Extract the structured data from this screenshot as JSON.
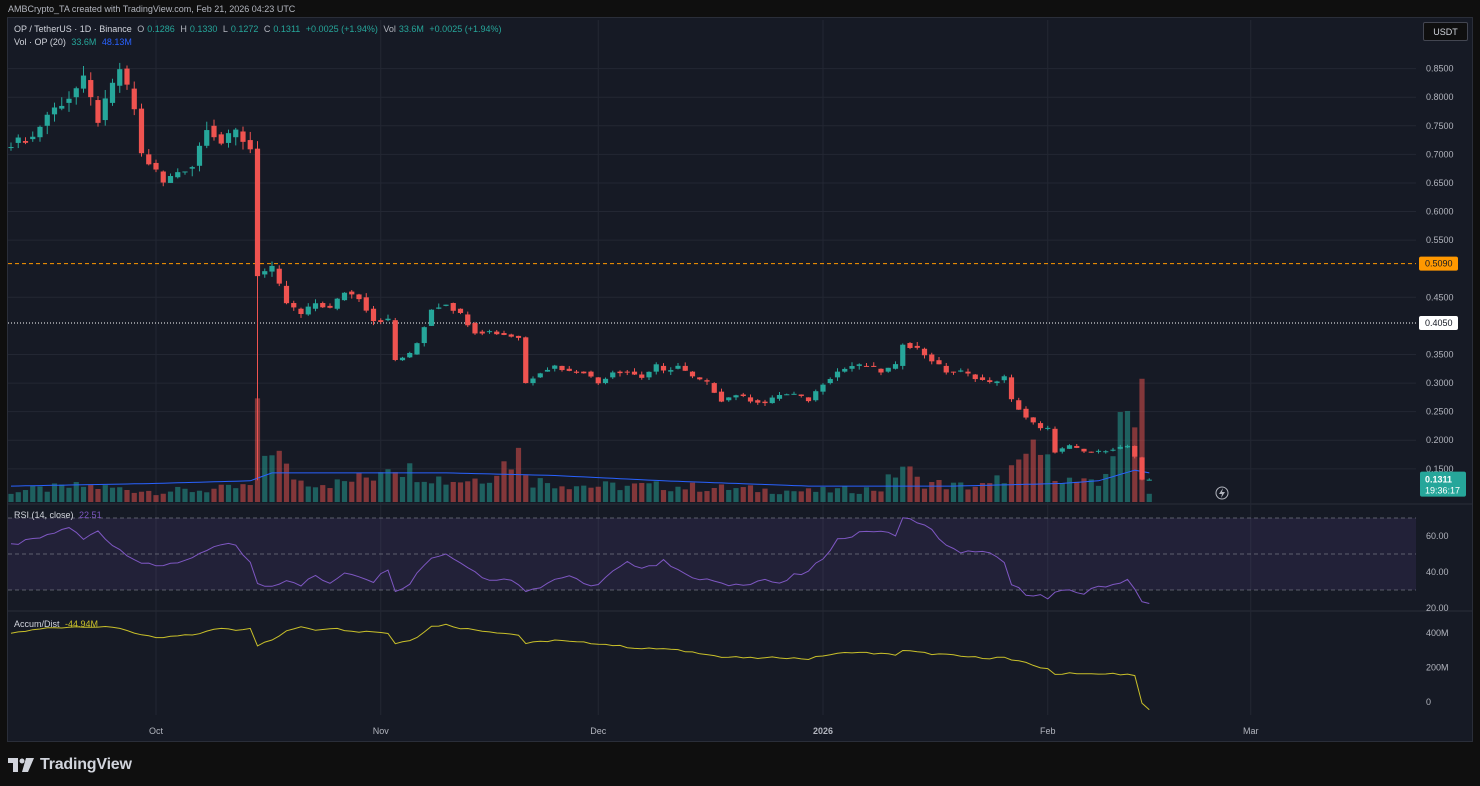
{
  "header": {
    "credit": "AMBCrypto_TA created with TradingView.com, Feb 21, 2026 04:23 UTC"
  },
  "legend": {
    "symbol": "OP / TetherUS · 1D · Binance",
    "o_label": "O",
    "o": "0.1286",
    "h_label": "H",
    "h": "0.1330",
    "l_label": "L",
    "l": "0.1272",
    "c_label": "C",
    "c": "0.1311",
    "change": "+0.0025 (+1.94%)",
    "vol_label": "Vol",
    "vol": "33.6M",
    "vol_change": "+0.0025 (+1.94%)",
    "vol_line_label": "Vol · OP (20)",
    "vol_value": "33.6M",
    "vol_ma": "48.13M",
    "rsi_label": "RSI (14, close)",
    "rsi_value": "22.51",
    "ad_label": "Accum/Dist",
    "ad_value": "-44.94M"
  },
  "price_axis": {
    "unit": "USDT"
  },
  "footer": {
    "brand": "TradingView"
  },
  "colors": {
    "bg": "#161a25",
    "up": "#26a69a",
    "down": "#ef5350",
    "vol_ma": "#2962ff",
    "rsi": "#7e57c2",
    "ad": "#c9c02a",
    "orange": "#ff9800"
  },
  "chart_data": {
    "type": "candlestick",
    "price_ticks": [
      "0.8500",
      "0.8000",
      "0.7500",
      "0.7000",
      "0.6500",
      "0.6000",
      "0.5500",
      "0.4500",
      "0.3500",
      "0.3000",
      "0.2500",
      "0.2000",
      "0.1500"
    ],
    "price_lines": [
      {
        "value": 0.509,
        "label": "0.5090",
        "style": "dashed",
        "color": "#ff9800"
      },
      {
        "value": 0.405,
        "label": "0.4050",
        "style": "dotted",
        "color": "#ffffff"
      }
    ],
    "last_price": {
      "value": 0.1311,
      "label": "0.1311",
      "countdown": "19:36:17"
    },
    "x_labels": [
      {
        "label": "Oct",
        "day": 20
      },
      {
        "label": "Nov",
        "day": 51
      },
      {
        "label": "Dec",
        "day": 81
      },
      {
        "label": "2026",
        "day": 112,
        "bold": true
      },
      {
        "label": "Feb",
        "day": 143
      },
      {
        "label": "Mar",
        "day": 171
      }
    ],
    "rsi": {
      "ticks": [
        "60.00",
        "40.00",
        "20.00"
      ],
      "levels": [
        70,
        50,
        30
      ]
    },
    "ad": {
      "ticks": [
        "400M",
        "200M",
        "0"
      ]
    },
    "price_anchors": [
      [
        0,
        0.72
      ],
      [
        3,
        0.73
      ],
      [
        5,
        0.77
      ],
      [
        8,
        0.8
      ],
      [
        10,
        0.83
      ],
      [
        12,
        0.76
      ],
      [
        14,
        0.82
      ],
      [
        15,
        0.85
      ],
      [
        17,
        0.78
      ],
      [
        18,
        0.7
      ],
      [
        20,
        0.67
      ],
      [
        21,
        0.65
      ],
      [
        23,
        0.67
      ],
      [
        25,
        0.68
      ],
      [
        27,
        0.75
      ],
      [
        29,
        0.72
      ],
      [
        31,
        0.74
      ],
      [
        33,
        0.71
      ],
      [
        34,
        0.49
      ],
      [
        36,
        0.5
      ],
      [
        38,
        0.44
      ],
      [
        40,
        0.42
      ],
      [
        42,
        0.44
      ],
      [
        44,
        0.43
      ],
      [
        46,
        0.46
      ],
      [
        48,
        0.45
      ],
      [
        50,
        0.41
      ],
      [
        52,
        0.41
      ],
      [
        53,
        0.34
      ],
      [
        55,
        0.35
      ],
      [
        56,
        0.37
      ],
      [
        58,
        0.43
      ],
      [
        60,
        0.44
      ],
      [
        62,
        0.42
      ],
      [
        64,
        0.39
      ],
      [
        66,
        0.39
      ],
      [
        68,
        0.385
      ],
      [
        70,
        0.38
      ],
      [
        71,
        0.3
      ],
      [
        73,
        0.32
      ],
      [
        75,
        0.33
      ],
      [
        77,
        0.32
      ],
      [
        79,
        0.32
      ],
      [
        81,
        0.3
      ],
      [
        83,
        0.32
      ],
      [
        85,
        0.32
      ],
      [
        87,
        0.31
      ],
      [
        89,
        0.33
      ],
      [
        90,
        0.32
      ],
      [
        92,
        0.33
      ],
      [
        94,
        0.31
      ],
      [
        96,
        0.3
      ],
      [
        98,
        0.27
      ],
      [
        100,
        0.28
      ],
      [
        102,
        0.27
      ],
      [
        104,
        0.265
      ],
      [
        106,
        0.28
      ],
      [
        108,
        0.28
      ],
      [
        110,
        0.27
      ],
      [
        112,
        0.3
      ],
      [
        114,
        0.32
      ],
      [
        116,
        0.33
      ],
      [
        118,
        0.33
      ],
      [
        120,
        0.32
      ],
      [
        122,
        0.33
      ],
      [
        123,
        0.37
      ],
      [
        125,
        0.36
      ],
      [
        127,
        0.34
      ],
      [
        129,
        0.32
      ],
      [
        131,
        0.32
      ],
      [
        133,
        0.31
      ],
      [
        135,
        0.3
      ],
      [
        137,
        0.31
      ],
      [
        138,
        0.27
      ],
      [
        140,
        0.24
      ],
      [
        142,
        0.22
      ],
      [
        143,
        0.22
      ],
      [
        144,
        0.18
      ],
      [
        146,
        0.19
      ],
      [
        148,
        0.18
      ],
      [
        150,
        0.18
      ],
      [
        152,
        0.185
      ],
      [
        154,
        0.19
      ],
      [
        155,
        0.17
      ],
      [
        156,
        0.13
      ],
      [
        157,
        0.131
      ]
    ],
    "volume_anchors": [
      [
        0,
        20
      ],
      [
        5,
        25
      ],
      [
        10,
        30
      ],
      [
        15,
        25
      ],
      [
        20,
        20
      ],
      [
        25,
        22
      ],
      [
        30,
        25
      ],
      [
        33,
        30
      ],
      [
        34,
        150
      ],
      [
        35,
        90
      ],
      [
        36,
        110
      ],
      [
        38,
        60
      ],
      [
        40,
        40
      ],
      [
        45,
        35
      ],
      [
        50,
        50
      ],
      [
        52,
        80
      ],
      [
        55,
        60
      ],
      [
        58,
        50
      ],
      [
        60,
        40
      ],
      [
        65,
        45
      ],
      [
        70,
        90
      ],
      [
        72,
        40
      ],
      [
        80,
        30
      ],
      [
        90,
        30
      ],
      [
        100,
        25
      ],
      [
        110,
        20
      ],
      [
        120,
        25
      ],
      [
        123,
        70
      ],
      [
        125,
        40
      ],
      [
        130,
        30
      ],
      [
        135,
        30
      ],
      [
        138,
        60
      ],
      [
        140,
        70
      ],
      [
        141,
        110
      ],
      [
        143,
        70
      ],
      [
        146,
        40
      ],
      [
        150,
        30
      ],
      [
        155,
        200
      ],
      [
        156,
        230
      ],
      [
        157,
        20
      ]
    ],
    "vol_ma_anchors": [
      [
        0,
        30
      ],
      [
        20,
        35
      ],
      [
        33,
        40
      ],
      [
        36,
        55
      ],
      [
        45,
        55
      ],
      [
        60,
        55
      ],
      [
        75,
        50
      ],
      [
        90,
        40
      ],
      [
        110,
        30
      ],
      [
        130,
        30
      ],
      [
        145,
        35
      ],
      [
        150,
        40
      ],
      [
        155,
        60
      ],
      [
        157,
        55
      ]
    ],
    "rsi_anchors": [
      [
        0,
        55
      ],
      [
        5,
        60
      ],
      [
        8,
        65
      ],
      [
        10,
        58
      ],
      [
        12,
        63
      ],
      [
        14,
        55
      ],
      [
        16,
        50
      ],
      [
        18,
        45
      ],
      [
        20,
        43
      ],
      [
        22,
        45
      ],
      [
        25,
        47
      ],
      [
        27,
        52
      ],
      [
        29,
        55
      ],
      [
        31,
        55
      ],
      [
        33,
        45
      ],
      [
        34,
        33
      ],
      [
        36,
        32
      ],
      [
        38,
        36
      ],
      [
        40,
        33
      ],
      [
        42,
        38
      ],
      [
        44,
        33
      ],
      [
        46,
        40
      ],
      [
        48,
        38
      ],
      [
        50,
        35
      ],
      [
        52,
        42
      ],
      [
        53,
        30
      ],
      [
        55,
        33
      ],
      [
        56,
        40
      ],
      [
        58,
        48
      ],
      [
        60,
        50
      ],
      [
        62,
        46
      ],
      [
        64,
        40
      ],
      [
        66,
        35
      ],
      [
        68,
        37
      ],
      [
        70,
        33
      ],
      [
        71,
        30
      ],
      [
        73,
        32
      ],
      [
        75,
        36
      ],
      [
        77,
        38
      ],
      [
        79,
        33
      ],
      [
        81,
        33
      ],
      [
        83,
        40
      ],
      [
        85,
        45
      ],
      [
        87,
        43
      ],
      [
        89,
        44
      ],
      [
        90,
        46
      ],
      [
        92,
        42
      ],
      [
        94,
        36
      ],
      [
        96,
        36
      ],
      [
        98,
        33
      ],
      [
        100,
        33
      ],
      [
        102,
        34
      ],
      [
        104,
        36
      ],
      [
        106,
        33
      ],
      [
        108,
        38
      ],
      [
        110,
        40
      ],
      [
        112,
        48
      ],
      [
        114,
        58
      ],
      [
        116,
        60
      ],
      [
        118,
        63
      ],
      [
        120,
        62
      ],
      [
        122,
        61
      ],
      [
        123,
        70
      ],
      [
        125,
        68
      ],
      [
        127,
        63
      ],
      [
        129,
        55
      ],
      [
        131,
        50
      ],
      [
        133,
        52
      ],
      [
        135,
        50
      ],
      [
        137,
        45
      ],
      [
        138,
        33
      ],
      [
        140,
        28
      ],
      [
        142,
        27
      ],
      [
        143,
        25
      ],
      [
        144,
        28
      ],
      [
        146,
        30
      ],
      [
        148,
        28
      ],
      [
        150,
        32
      ],
      [
        152,
        33
      ],
      [
        154,
        36
      ],
      [
        155,
        30
      ],
      [
        156,
        23
      ],
      [
        157,
        22.5
      ]
    ],
    "ad_anchors": [
      [
        0,
        400
      ],
      [
        5,
        430
      ],
      [
        10,
        440
      ],
      [
        15,
        430
      ],
      [
        18,
        390
      ],
      [
        20,
        370
      ],
      [
        22,
        380
      ],
      [
        25,
        390
      ],
      [
        27,
        410
      ],
      [
        29,
        430
      ],
      [
        31,
        420
      ],
      [
        33,
        430
      ],
      [
        34,
        330
      ],
      [
        36,
        360
      ],
      [
        38,
        410
      ],
      [
        40,
        440
      ],
      [
        42,
        420
      ],
      [
        44,
        430
      ],
      [
        46,
        420
      ],
      [
        48,
        410
      ],
      [
        50,
        410
      ],
      [
        52,
        400
      ],
      [
        53,
        340
      ],
      [
        55,
        360
      ],
      [
        56,
        380
      ],
      [
        58,
        440
      ],
      [
        60,
        450
      ],
      [
        62,
        430
      ],
      [
        64,
        420
      ],
      [
        66,
        410
      ],
      [
        68,
        400
      ],
      [
        70,
        390
      ],
      [
        71,
        340
      ],
      [
        73,
        350
      ],
      [
        75,
        360
      ],
      [
        77,
        350
      ],
      [
        79,
        345
      ],
      [
        81,
        340
      ],
      [
        83,
        330
      ],
      [
        85,
        320
      ],
      [
        87,
        310
      ],
      [
        89,
        310
      ],
      [
        90,
        310
      ],
      [
        92,
        300
      ],
      [
        94,
        290
      ],
      [
        96,
        280
      ],
      [
        98,
        260
      ],
      [
        100,
        260
      ],
      [
        102,
        255
      ],
      [
        104,
        255
      ],
      [
        106,
        260
      ],
      [
        108,
        255
      ],
      [
        110,
        250
      ],
      [
        112,
        270
      ],
      [
        114,
        280
      ],
      [
        116,
        290
      ],
      [
        118,
        285
      ],
      [
        120,
        280
      ],
      [
        122,
        275
      ],
      [
        123,
        300
      ],
      [
        125,
        290
      ],
      [
        127,
        280
      ],
      [
        129,
        275
      ],
      [
        131,
        265
      ],
      [
        133,
        260
      ],
      [
        135,
        255
      ],
      [
        137,
        260
      ],
      [
        138,
        240
      ],
      [
        140,
        230
      ],
      [
        142,
        200
      ],
      [
        143,
        190
      ],
      [
        144,
        160
      ],
      [
        146,
        170
      ],
      [
        148,
        165
      ],
      [
        150,
        160
      ],
      [
        152,
        165
      ],
      [
        154,
        160
      ],
      [
        155,
        150
      ],
      [
        156,
        -10
      ],
      [
        157,
        -45
      ]
    ]
  }
}
